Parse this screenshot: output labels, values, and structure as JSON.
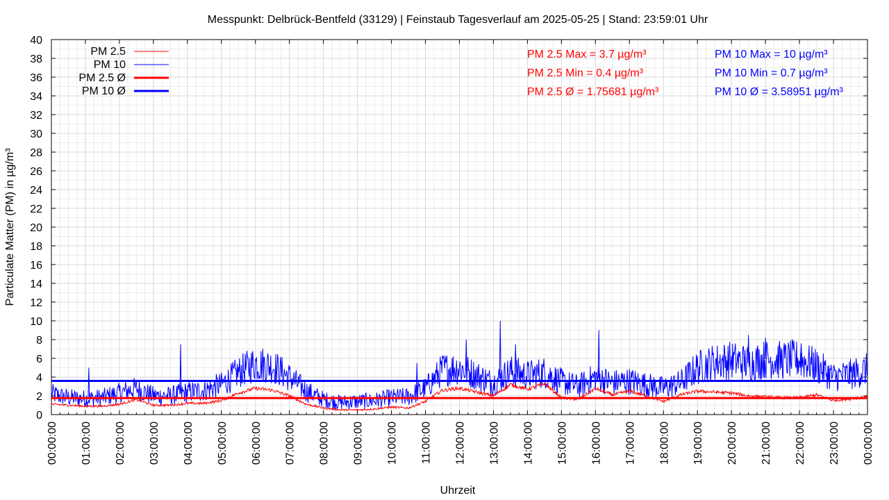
{
  "chart_data": {
    "type": "line",
    "title": "Messpunkt: Delbrück-Bentfeld (33129) | Feinstaub Tagesverlauf am 2025-05-25 | Stand: 23:59:01 Uhr",
    "xlabel": "Uhrzeit",
    "ylabel": "Particulate Matter (PM) in µg/m³",
    "ylim": [
      0,
      40
    ],
    "yticks": [
      "0",
      "2",
      "4",
      "6",
      "8",
      "10",
      "12",
      "14",
      "16",
      "18",
      "20",
      "22",
      "24",
      "26",
      "28",
      "30",
      "32",
      "34",
      "36",
      "38",
      "40"
    ],
    "xlim": [
      "00:00:00",
      "00:00:00"
    ],
    "xticks": [
      "00:00:00",
      "01:00:00",
      "02:00:00",
      "03:00:00",
      "04:00:00",
      "05:00:00",
      "06:00:00",
      "07:00:00",
      "08:00:00",
      "09:00:00",
      "10:00:00",
      "11:00:00",
      "12:00:00",
      "13:00:00",
      "14:00:00",
      "15:00:00",
      "16:00:00",
      "17:00:00",
      "18:00:00",
      "19:00:00",
      "20:00:00",
      "21:00:00",
      "22:00:00",
      "23:00:00",
      "00:00:00"
    ],
    "grid": true,
    "legend_position": "top-left",
    "series": [
      {
        "name": "PM 2.5",
        "color": "#ff0000",
        "x_hours": [
          0,
          0.5,
          1,
          1.5,
          2,
          2.5,
          3,
          3.5,
          4,
          4.5,
          5,
          5.5,
          6,
          6.5,
          7,
          7.5,
          8,
          8.5,
          9,
          9.5,
          10,
          10.5,
          11,
          11.5,
          12,
          12.5,
          13,
          13.5,
          14,
          14.5,
          15,
          15.5,
          16,
          16.5,
          17,
          17.5,
          18,
          18.5,
          19,
          19.5,
          20,
          20.5,
          21,
          21.5,
          22,
          22.5,
          23,
          23.5,
          24
        ],
        "values": [
          1.1,
          1.0,
          0.9,
          0.9,
          1.1,
          1.6,
          1.0,
          1.0,
          1.2,
          1.2,
          1.5,
          2.3,
          2.8,
          2.6,
          2.0,
          1.1,
          0.7,
          0.5,
          0.5,
          0.6,
          0.8,
          0.7,
          1.4,
          2.6,
          2.8,
          2.4,
          2.0,
          3.2,
          2.7,
          3.3,
          1.8,
          1.6,
          2.8,
          2.1,
          2.5,
          2.0,
          1.4,
          2.1,
          2.5,
          2.4,
          2.3,
          2.0,
          1.9,
          1.8,
          1.8,
          2.1,
          1.5,
          1.7,
          1.9
        ]
      },
      {
        "name": "PM 10",
        "color": "#0000ff",
        "x_hours": [
          0,
          0.5,
          1,
          1.5,
          2,
          2.5,
          3,
          3.5,
          4,
          4.5,
          5,
          5.5,
          6,
          6.5,
          7,
          7.5,
          8,
          8.5,
          9,
          9.5,
          10,
          10.5,
          11,
          11.5,
          12,
          12.5,
          13,
          13.5,
          14,
          14.5,
          15,
          15.5,
          16,
          16.5,
          17,
          17.5,
          18,
          18.5,
          19,
          19.5,
          20,
          20.5,
          21,
          21.5,
          22,
          22.5,
          23,
          23.5,
          24
        ],
        "values": [
          2.2,
          1.8,
          1.7,
          1.8,
          2.3,
          2.8,
          2.0,
          2.0,
          2.4,
          2.6,
          3.2,
          4.5,
          5.5,
          5.2,
          4.0,
          2.5,
          1.6,
          1.3,
          1.4,
          1.5,
          1.8,
          1.9,
          2.8,
          4.8,
          5.0,
          4.2,
          3.4,
          4.6,
          4.2,
          4.5,
          3.5,
          3.0,
          4.0,
          3.4,
          3.6,
          3.2,
          2.8,
          3.4,
          5.0,
          5.6,
          5.8,
          5.5,
          5.9,
          5.8,
          5.9,
          5.2,
          4.0,
          4.3,
          4.8
        ]
      },
      {
        "name": "PM 2.5 Ø",
        "color": "#ff0000",
        "constant": 1.75681
      },
      {
        "name": "PM 10 Ø",
        "color": "#0000ff",
        "constant": 3.58951
      }
    ],
    "annotations": {
      "pm25": [
        "PM 2.5 Max = 3.7 µg/m³",
        "PM 2.5 Min = 0.4 µg/m³",
        "PM 2.5 Ø = 1.75681 µg/m³"
      ],
      "pm10": [
        "PM 10 Max = 10 µg/m³",
        "PM 10 Min = 0.7 µg/m³",
        "PM 10 Ø = 3.58951 µg/m³"
      ]
    }
  }
}
